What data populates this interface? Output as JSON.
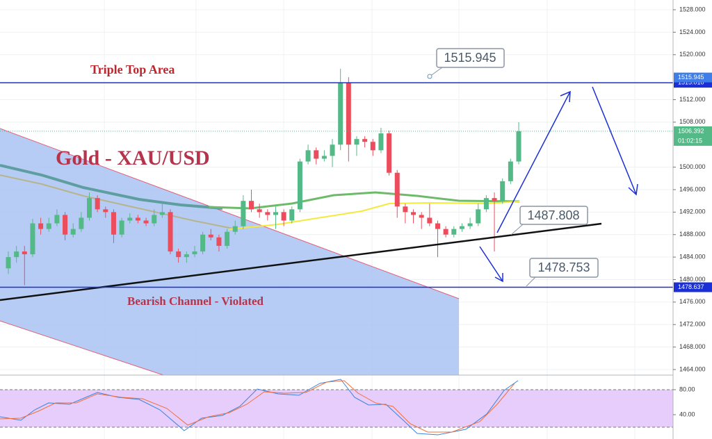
{
  "chart_data": {
    "type": "candlestick",
    "title": "Gold - XAU/USD",
    "annotations": [
      "Triple Top Area",
      "Bearish Channel - Violated"
    ],
    "callouts": [
      1515.945,
      1487.808,
      1478.753
    ],
    "levels": [
      {
        "value": 1515.01,
        "label": "1515.010"
      },
      {
        "value": 1478.637,
        "label": "1478.637"
      }
    ],
    "last_price": 1506.392,
    "countdown": "01:02:15",
    "up_color": "#53b987",
    "down_color": "#eb4d5c",
    "level_color": "#1a2fd6",
    "open": [
      1482,
      1484,
      1485,
      1484.5,
      1490,
      1489,
      1490,
      1491.5,
      1488,
      1489,
      1491,
      1494.5,
      1492.5,
      1492,
      1488,
      1490.5,
      1491,
      1490.5,
      1490,
      1491.5,
      1492,
      1485,
      1484,
      1484.5,
      1485,
      1488,
      1487.5,
      1486,
      1488.5,
      1489.5,
      1494,
      1492.5,
      1492,
      1491.5,
      1492,
      1490.5,
      1492.5,
      1501,
      1503,
      1501.5,
      1502,
      1504,
      1515,
      1504,
      1505,
      1504.5,
      1503,
      1506,
      1499,
      1493,
      1492,
      1491.5,
      1491,
      1490,
      1489,
      1488,
      1489,
      1489.5,
      1490,
      1492.5,
      1494.5,
      1494,
      1497.5,
      1501
    ],
    "high": [
      1485,
      1486,
      1486,
      1490.8,
      1491,
      1491,
      1492.5,
      1492,
      1490,
      1492,
      1495.5,
      1495,
      1493,
      1492.5,
      1491,
      1491.8,
      1491.5,
      1491,
      1492.5,
      1493.5,
      1492.5,
      1485.5,
      1485,
      1486,
      1488.5,
      1489,
      1488,
      1489,
      1490.5,
      1495,
      1496,
      1493.5,
      1492.5,
      1493,
      1492.5,
      1493,
      1501.5,
      1504,
      1503.5,
      1503,
      1505,
      1517.5,
      1516,
      1505.5,
      1505.5,
      1505,
      1507,
      1506.5,
      1499.5,
      1493.5,
      1492.5,
      1492,
      1493.5,
      1490.5,
      1489.5,
      1489.5,
      1490,
      1491,
      1493.5,
      1495,
      1495.5,
      1498,
      1501.5,
      1508
    ],
    "low": [
      1481,
      1483,
      1479,
      1484,
      1488,
      1488.5,
      1489.5,
      1487,
      1487.5,
      1488.5,
      1490.5,
      1492,
      1491,
      1486.5,
      1487.5,
      1490,
      1490,
      1489.5,
      1489.5,
      1491,
      1484.5,
      1483,
      1483,
      1484,
      1484.5,
      1487,
      1485,
      1485.5,
      1488,
      1489,
      1492,
      1491,
      1490.5,
      1489,
      1489.5,
      1490,
      1492,
      1500.5,
      1500.5,
      1501,
      1500,
      1503,
      1501,
      1502,
      1503.5,
      1502,
      1502.5,
      1498.5,
      1491,
      1490,
      1490,
      1489,
      1489.5,
      1484,
      1487.5,
      1487.5,
      1488.5,
      1489,
      1489.5,
      1492,
      1485,
      1493.5,
      1497,
      1500.5
    ],
    "close": [
      1484,
      1485,
      1484.5,
      1490,
      1489,
      1490,
      1491.5,
      1488,
      1489,
      1491,
      1494.5,
      1492.5,
      1492,
      1488,
      1490.5,
      1491,
      1490.5,
      1490,
      1491.5,
      1492,
      1485,
      1484,
      1484.5,
      1485,
      1488,
      1487.5,
      1486,
      1488.5,
      1489.5,
      1494,
      1492.5,
      1492,
      1491.5,
      1492,
      1490.5,
      1492.5,
      1501,
      1503,
      1501.5,
      1502,
      1504,
      1515,
      1504,
      1505,
      1504.5,
      1503,
      1506,
      1499,
      1493,
      1492,
      1491.5,
      1491,
      1490,
      1489,
      1488,
      1489,
      1489.5,
      1490,
      1492.5,
      1494.5,
      1494,
      1497.5,
      1501,
      1506.392
    ],
    "ylim": [
      1463.01,
      1529.73
    ],
    "yticks": [
      {
        "value": 1528,
        "label": "1528.000"
      },
      {
        "value": 1524,
        "label": "1524.000"
      },
      {
        "value": 1520,
        "label": "1520.000"
      },
      {
        "value": 1512,
        "label": "1512.000"
      },
      {
        "value": 1508,
        "label": "1508.000"
      },
      {
        "value": 1500,
        "label": "1500.000"
      },
      {
        "value": 1496,
        "label": "1496.000"
      },
      {
        "value": 1492,
        "label": "1492.000"
      },
      {
        "value": 1488,
        "label": "1488.000"
      },
      {
        "value": 1484,
        "label": "1484.000"
      },
      {
        "value": 1480,
        "label": "1480.000"
      },
      {
        "value": 1476,
        "label": "1476.000"
      },
      {
        "value": 1472,
        "label": "1472.000"
      },
      {
        "value": 1468,
        "label": "1468.000"
      },
      {
        "value": 1464,
        "label": "1464.000"
      }
    ],
    "oscillator": {
      "ylim": [
        0,
        100
      ],
      "yticks": [
        {
          "value": 80,
          "label": "80.00"
        },
        {
          "value": 40,
          "label": "40.00"
        }
      ],
      "band": [
        20,
        80
      ]
    }
  }
}
